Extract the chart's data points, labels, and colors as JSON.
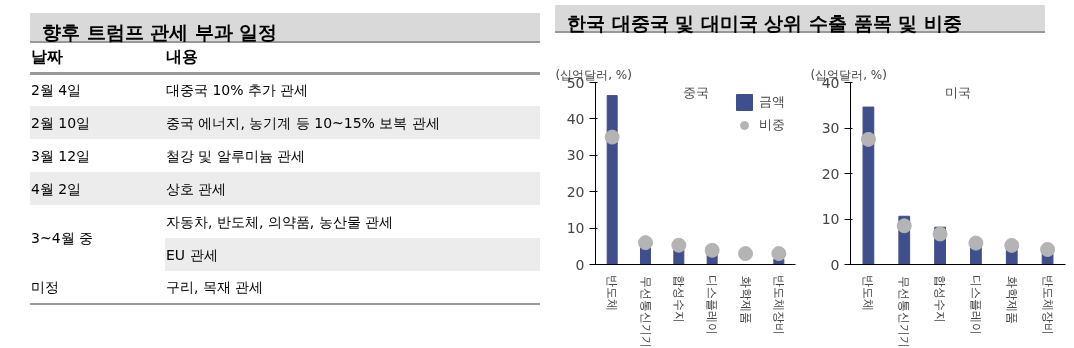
{
  "chart_data": [
    {
      "type": "other",
      "title": "향후 트럼프 관세 부과 일정",
      "annotations": [
        "날짜",
        "내용",
        "2월 4일",
        "대중국 10% 추가 관세",
        "2월 10일",
        "중국 에너지, 농기계 등 10~15% 보복 관세",
        "3월 12일",
        "철강 및 알루미늄 관세",
        "4월 2일",
        "상호 관세",
        "3~4월 중",
        "자동차, 반도체, 의약품, 농산물 관세",
        "EU 관세",
        "미정",
        "구리, 목재 관세"
      ]
    },
    {
      "type": "bar",
      "title": "한국 대중국 및 대미국 상위 수출 품목 및 비중",
      "subtitle": "중국",
      "ylabel": "(십억달러, %)",
      "categories": [
        "반도체",
        "무선통신기기",
        "합성수지",
        "디스플레이",
        "화학제품",
        "반도체장비"
      ],
      "ylim": [
        0,
        50
      ],
      "yticks": [
        0,
        10,
        20,
        30,
        40,
        50
      ],
      "grid": false,
      "legend": "top right",
      "series": [
        {
          "name": "금액",
          "type": "bar",
          "color": "#3f4e8c",
          "values": [
            46.4,
            5,
            4,
            3,
            null,
            1.5
          ]
        },
        {
          "name": "비중",
          "type": "scatter",
          "marker": "circle",
          "color": "#b4b4b4",
          "values": [
            35.0,
            6.0,
            5.3,
            3.9,
            3.0,
            3.0
          ]
        }
      ]
    },
    {
      "type": "bar",
      "subtitle": "미국",
      "ylabel": "(십억달러, %)",
      "categories": [
        "반도체",
        "무선통신기기",
        "합성수지",
        "디스플레이",
        "화학제품",
        "반도체장비"
      ],
      "ylim": [
        0,
        40
      ],
      "yticks": [
        0,
        10,
        20,
        30,
        40
      ],
      "grid": false,
      "series": [
        {
          "type": "bar",
          "color": "#3f4e8c",
          "values": [
            34.6,
            10.6,
            8.2,
            4,
            3.5,
            2.5
          ]
        },
        {
          "type": "scatter",
          "marker": "circle",
          "color": "#b4b4b4",
          "values": [
            27.5,
            8.5,
            6.7,
            4.7,
            4.2,
            3.3
          ]
        }
      ]
    }
  ]
}
